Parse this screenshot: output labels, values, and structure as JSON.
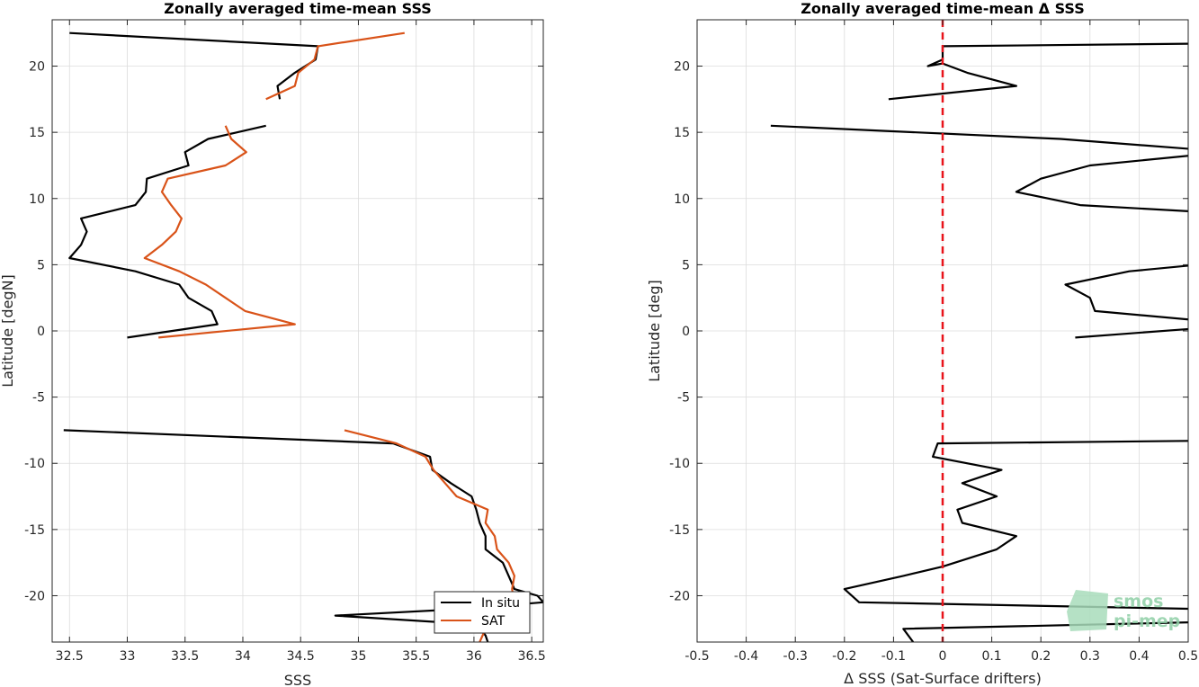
{
  "colors": {
    "insitu": "#000000",
    "sat": "#d95319",
    "zero_line": "#e8131a",
    "watermark": "#8fcfa6"
  },
  "watermark": {
    "line1": "smos",
    "line2": "pi-mep"
  },
  "chart_data": [
    {
      "type": "line",
      "title": "Zonally averaged time-mean SSS",
      "xlabel": "SSS",
      "ylabel": "Latitude [degN]",
      "xlim": [
        32.35,
        36.6
      ],
      "ylim": [
        -23.5,
        23.5
      ],
      "xticks": [
        32.5,
        33,
        33.5,
        34,
        34.5,
        35,
        35.5,
        36,
        36.5
      ],
      "xtick_labels": [
        "32.5",
        "33",
        "33.5",
        "34",
        "34.5",
        "35",
        "35.5",
        "36",
        "36.5"
      ],
      "yticks": [
        -20,
        -15,
        -10,
        -5,
        0,
        5,
        10,
        15,
        20
      ],
      "ytick_labels": [
        "-20",
        "-15",
        "-10",
        "-5",
        "0",
        "5",
        "10",
        "15",
        "20"
      ],
      "grid": true,
      "legend": {
        "location": "bottom-right",
        "entries": [
          "In situ",
          "SAT"
        ]
      },
      "series": [
        {
          "name": "In situ",
          "color": "#000000",
          "points": [
            [
              32.5,
              22.5
            ],
            [
              34.65,
              21.5
            ],
            [
              34.63,
              20.5
            ],
            [
              34.45,
              19.5
            ],
            [
              34.3,
              18.5
            ],
            [
              34.32,
              17.5
            ],
            null,
            [
              34.2,
              15.5
            ],
            [
              33.7,
              14.5
            ],
            [
              33.5,
              13.5
            ],
            [
              33.53,
              12.5
            ],
            [
              33.17,
              11.5
            ],
            [
              33.16,
              10.5
            ],
            [
              33.07,
              9.5
            ],
            [
              32.6,
              8.5
            ],
            [
              32.65,
              7.5
            ],
            [
              32.6,
              6.5
            ],
            [
              32.5,
              5.5
            ],
            [
              33.07,
              4.5
            ],
            [
              33.45,
              3.5
            ],
            [
              33.53,
              2.5
            ],
            [
              33.73,
              1.5
            ],
            [
              33.78,
              0.5
            ],
            [
              33.0,
              -0.5
            ],
            null,
            [
              32.45,
              -7.5
            ],
            [
              35.3,
              -8.5
            ],
            [
              35.62,
              -9.5
            ],
            [
              35.64,
              -10.5
            ],
            [
              35.8,
              -11.5
            ],
            [
              35.98,
              -12.5
            ],
            [
              36.02,
              -13.5
            ],
            [
              36.05,
              -14.5
            ],
            [
              36.1,
              -15.5
            ],
            [
              36.1,
              -16.5
            ],
            [
              36.25,
              -17.5
            ],
            [
              36.3,
              -18.5
            ],
            [
              36.35,
              -19.5
            ],
            [
              36.55,
              -20
            ],
            [
              36.6,
              -20.5
            ],
            [
              35.9,
              -21
            ],
            [
              34.8,
              -21.5
            ],
            [
              35.7,
              -22
            ],
            [
              36.05,
              -22.5
            ],
            [
              36.1,
              -23
            ],
            [
              36.12,
              -23.5
            ]
          ]
        },
        {
          "name": "SAT",
          "color": "#d95319",
          "points": [
            [
              35.4,
              22.5
            ],
            [
              34.65,
              21.5
            ],
            [
              34.62,
              20.5
            ],
            [
              34.48,
              19.5
            ],
            [
              34.45,
              18.5
            ],
            [
              34.2,
              17.5
            ],
            null,
            [
              33.85,
              15.5
            ],
            [
              33.9,
              14.5
            ],
            [
              34.03,
              13.5
            ],
            [
              33.85,
              12.5
            ],
            [
              33.35,
              11.5
            ],
            [
              33.3,
              10.5
            ],
            [
              33.38,
              9.5
            ],
            [
              33.47,
              8.5
            ],
            [
              33.42,
              7.5
            ],
            [
              33.3,
              6.5
            ],
            [
              33.15,
              5.5
            ],
            [
              33.45,
              4.5
            ],
            [
              33.68,
              3.5
            ],
            [
              33.85,
              2.5
            ],
            [
              34.02,
              1.5
            ],
            [
              34.45,
              0.5
            ],
            [
              33.27,
              -0.5
            ],
            null,
            [
              34.88,
              -7.5
            ],
            [
              35.33,
              -8.5
            ],
            [
              35.58,
              -9.5
            ],
            [
              35.65,
              -10.5
            ],
            [
              35.75,
              -11.5
            ],
            [
              35.85,
              -12.5
            ],
            [
              36.12,
              -13.5
            ],
            [
              36.1,
              -14.5
            ],
            [
              36.18,
              -15.5
            ],
            [
              36.2,
              -16.5
            ],
            [
              36.3,
              -17.5
            ],
            [
              36.35,
              -18.5
            ],
            [
              36.33,
              -19.5
            ],
            [
              36.35,
              -20.5
            ],
            [
              36.25,
              -21.5
            ],
            [
              36.1,
              -22.5
            ],
            [
              36.05,
              -23.5
            ]
          ]
        }
      ]
    },
    {
      "type": "line",
      "title": "Zonally averaged time-mean Δ SSS",
      "xlabel": "Δ SSS (Sat-Surface drifters)",
      "ylabel": "Latitude [deg]",
      "xlim": [
        -0.5,
        0.5
      ],
      "ylim": [
        -23.5,
        23.5
      ],
      "xticks": [
        -0.5,
        -0.4,
        -0.3,
        -0.2,
        -0.1,
        0,
        0.1,
        0.2,
        0.3,
        0.4,
        0.5
      ],
      "xtick_labels": [
        "-0.5",
        "-0.4",
        "-0.3",
        "-0.2",
        "-0.1",
        "0",
        "0.1",
        "0.2",
        "0.3",
        "0.4",
        "0.5"
      ],
      "yticks": [
        -20,
        -15,
        -10,
        -5,
        0,
        5,
        10,
        15,
        20
      ],
      "ytick_labels": [
        "-20",
        "-15",
        "-10",
        "-5",
        "0",
        "5",
        "10",
        "15",
        "20"
      ],
      "grid": true,
      "reference_line": {
        "x": 0,
        "style": "dashed",
        "color": "#e8131a"
      },
      "series": [
        {
          "color": "#000000",
          "points": [
            [
              0.52,
              21.7
            ],
            [
              0.0,
              21.5
            ],
            [
              0.0,
              20.5
            ],
            [
              -0.03,
              20.0
            ],
            [
              0.0,
              20.2
            ],
            [
              0.05,
              19.5
            ],
            [
              0.15,
              18.5
            ],
            [
              -0.11,
              17.5
            ],
            null,
            [
              -0.35,
              15.5
            ],
            [
              0.24,
              14.5
            ],
            [
              0.52,
              13.7
            ],
            null,
            [
              0.52,
              13.3
            ],
            [
              0.3,
              12.5
            ],
            [
              0.2,
              11.5
            ],
            [
              0.15,
              10.5
            ],
            [
              0.28,
              9.5
            ],
            [
              0.52,
              9.0
            ],
            null,
            [
              0.52,
              5.0
            ],
            [
              0.38,
              4.5
            ],
            [
              0.25,
              3.5
            ],
            [
              0.3,
              2.5
            ],
            [
              0.31,
              1.5
            ],
            [
              0.52,
              0.8
            ],
            null,
            [
              0.52,
              0.2
            ],
            [
              0.27,
              -0.5
            ],
            null,
            [
              0.52,
              -8.3
            ],
            [
              -0.01,
              -8.5
            ],
            [
              -0.02,
              -9.5
            ],
            [
              0.12,
              -10.5
            ],
            [
              0.04,
              -11.5
            ],
            [
              0.11,
              -12.5
            ],
            [
              0.03,
              -13.5
            ],
            [
              0.04,
              -14.5
            ],
            [
              0.15,
              -15.5
            ],
            [
              0.11,
              -16.5
            ],
            [
              0.0,
              -17.8
            ],
            [
              -0.08,
              -18.5
            ],
            [
              -0.2,
              -19.5
            ],
            [
              -0.17,
              -20.5
            ],
            [
              0.52,
              -21.0
            ],
            null,
            [
              0.52,
              -22.0
            ],
            [
              -0.08,
              -22.5
            ],
            [
              -0.06,
              -23.5
            ]
          ]
        }
      ]
    }
  ]
}
